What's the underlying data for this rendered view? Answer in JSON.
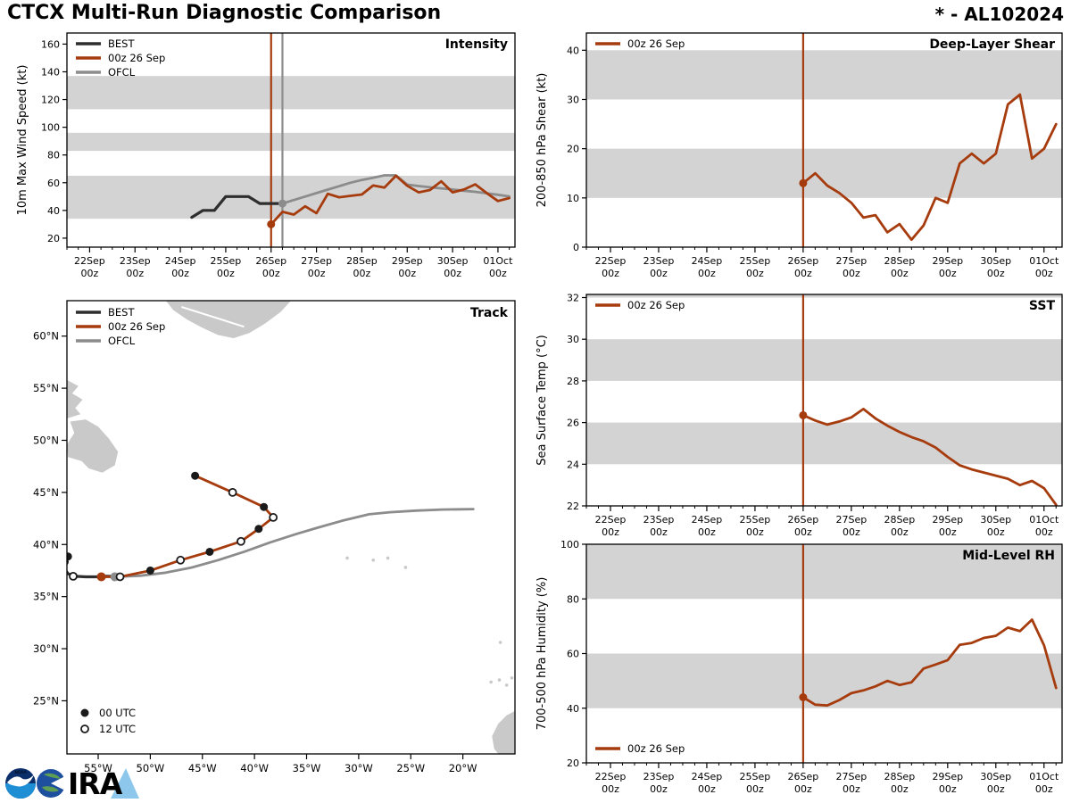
{
  "header": {
    "title": "CTCX Multi-Run Diagnostic Comparison",
    "storm_id": "* - AL102024"
  },
  "colors": {
    "best": "#2e2e2e",
    "model": "#a63c0e",
    "ofcl": "#8c8c8c",
    "band": "#d3d3d3",
    "land": "#c9c9c9",
    "axis": "#000000"
  },
  "logos": {
    "noaa_text": "NOAA",
    "cira_text": "IRA"
  },
  "time_axis": {
    "range_hours": [
      -12,
      225
    ],
    "major_tick_hours": [
      0,
      24,
      48,
      72,
      96,
      120,
      144,
      168,
      192,
      216
    ],
    "major_tick_labels": [
      [
        "22Sep",
        "00z"
      ],
      [
        "23Sep",
        "00z"
      ],
      [
        "24Sep",
        "00z"
      ],
      [
        "25Sep",
        "00z"
      ],
      [
        "26Sep",
        "00z"
      ],
      [
        "27Sep",
        "00z"
      ],
      [
        "28Sep",
        "00z"
      ],
      [
        "29Sep",
        "00z"
      ],
      [
        "30Sep",
        "00z"
      ],
      [
        "01Oct",
        "00z"
      ]
    ],
    "minor_step_hours": 6
  },
  "chart_data": [
    {
      "id": "intensity",
      "type": "line",
      "title": "Intensity",
      "ylabel": "10m Max Wind Speed (kt)",
      "ylim": [
        13.5,
        168
      ],
      "yticks": [
        20,
        40,
        60,
        80,
        100,
        120,
        140,
        160
      ],
      "bands": [
        [
          34,
          65
        ],
        [
          83,
          96
        ],
        [
          113,
          137
        ]
      ],
      "vlines": [
        {
          "t": 96,
          "color_key": "model"
        },
        {
          "t": 102,
          "color_key": "ofcl"
        }
      ],
      "legend": {
        "position": "top-left",
        "entries": [
          {
            "label": "BEST",
            "color_key": "best"
          },
          {
            "label": "00z 26 Sep",
            "color_key": "model"
          },
          {
            "label": "OFCL",
            "color_key": "ofcl"
          }
        ]
      },
      "series": [
        {
          "name": "BEST",
          "color_key": "best",
          "width": 3.2,
          "t_start": 54,
          "dt": 6,
          "values": [
            35,
            40,
            40,
            50,
            50,
            50,
            45,
            45,
            45
          ]
        },
        {
          "name": "OFCL",
          "color_key": "ofcl",
          "width": 2.8,
          "t_start": 102,
          "dt": 6,
          "values": [
            45,
            47.5,
            50,
            52.5,
            55,
            57.5,
            60,
            62,
            63.5,
            65.3,
            65.3,
            58.6,
            57.6,
            56.7,
            55.9,
            55.1,
            54.2,
            53.4,
            52.4,
            51.3,
            50.1
          ],
          "init_marker": {
            "t": 102,
            "v": 45
          }
        },
        {
          "name": "00z 26 Sep",
          "color_key": "model",
          "width": 2.8,
          "t_start": 96,
          "dt": 6,
          "values": [
            30,
            39,
            37,
            43,
            38,
            52,
            49.5,
            50.5,
            51.5,
            58,
            56.5,
            65,
            57.8,
            53,
            54.7,
            61,
            53,
            55.1,
            58.8,
            52.6,
            46.8,
            48.9
          ],
          "init_marker": {
            "t": 96,
            "v": 30
          }
        }
      ]
    },
    {
      "id": "shear",
      "type": "line",
      "title": "Deep-Layer Shear",
      "ylabel": "200-850 hPa Shear (kt)",
      "ylim": [
        0,
        43.5
      ],
      "yticks": [
        0,
        10,
        20,
        30,
        40
      ],
      "bands": [
        [
          10,
          20
        ],
        [
          30,
          40
        ]
      ],
      "vlines": [
        {
          "t": 96,
          "color_key": "model"
        }
      ],
      "legend": {
        "position": "top-left",
        "entries": [
          {
            "label": "00z 26 Sep",
            "color_key": "model"
          }
        ]
      },
      "series": [
        {
          "name": "00z 26 Sep",
          "color_key": "model",
          "width": 2.8,
          "t_start": 96,
          "dt": 6,
          "values": [
            13,
            15,
            12.5,
            11,
            9,
            6,
            6.5,
            3,
            4.7,
            1.5,
            4.4,
            10,
            9,
            17,
            19,
            17,
            19,
            29,
            31,
            18,
            20,
            25
          ],
          "init_marker": {
            "t": 96,
            "v": 13
          }
        }
      ]
    },
    {
      "id": "sst",
      "type": "line",
      "title": "SST",
      "ylabel": "Sea Surface Temp (°C)",
      "ylim": [
        22,
        32.15
      ],
      "yticks": [
        22,
        24,
        26,
        28,
        30,
        32
      ],
      "bands": [
        [
          24,
          26
        ],
        [
          28,
          30
        ],
        [
          32,
          32.15
        ]
      ],
      "vlines": [
        {
          "t": 96,
          "color_key": "model"
        }
      ],
      "legend": {
        "position": "top-left",
        "entries": [
          {
            "label": "00z 26 Sep",
            "color_key": "model"
          }
        ]
      },
      "series": [
        {
          "name": "00z 26 Sep",
          "color_key": "model",
          "width": 2.8,
          "t_start": 96,
          "dt": 6,
          "values": [
            26.35,
            26.1,
            25.9,
            26.05,
            26.25,
            26.65,
            26.2,
            25.85,
            25.55,
            25.3,
            25.1,
            24.8,
            24.35,
            23.95,
            23.75,
            23.6,
            23.45,
            23.3,
            23.0,
            23.2,
            22.85,
            22.05
          ],
          "init_marker": {
            "t": 96,
            "v": 26.35
          }
        }
      ]
    },
    {
      "id": "rh",
      "type": "line",
      "title": "Mid-Level RH",
      "ylabel": "700-500 hPa Humidity (%)",
      "ylim": [
        20,
        100
      ],
      "yticks": [
        20,
        40,
        60,
        80,
        100
      ],
      "bands": [
        [
          40,
          60
        ],
        [
          80,
          100
        ]
      ],
      "vlines": [
        {
          "t": 96,
          "color_key": "model"
        }
      ],
      "legend": {
        "position": "bottom-left",
        "entries": [
          {
            "label": "00z 26 Sep",
            "color_key": "model"
          }
        ]
      },
      "series": [
        {
          "name": "00z 26 Sep",
          "color_key": "model",
          "width": 2.8,
          "t_start": 96,
          "dt": 6,
          "values": [
            44,
            41.3,
            41,
            43,
            45.5,
            46.5,
            48,
            50,
            48.5,
            49.5,
            54.5,
            56,
            57.6,
            63.2,
            63.9,
            65.7,
            66.5,
            69.5,
            68.2,
            72.4,
            63,
            47.4
          ],
          "init_marker": {
            "t": 96,
            "v": 44
          }
        }
      ]
    },
    {
      "id": "track",
      "type": "map",
      "title": "Track",
      "lon_lim": [
        -58.0,
        -15.0
      ],
      "lat_lim": [
        19.9,
        63.4
      ],
      "lon_ticks": [
        -55,
        -50,
        -45,
        -40,
        -35,
        -30,
        -25,
        -20
      ],
      "lon_tick_labels": [
        "55°W",
        "50°W",
        "45°W",
        "40°W",
        "35°W",
        "30°W",
        "25°W",
        "20°W"
      ],
      "lat_ticks": [
        25,
        30,
        35,
        40,
        45,
        50,
        55,
        60
      ],
      "lat_tick_labels": [
        "25°N",
        "30°N",
        "35°N",
        "40°N",
        "45°N",
        "50°N",
        "55°N",
        "60°N"
      ],
      "legend": {
        "position": "top-left",
        "entries": [
          {
            "label": "BEST",
            "color_key": "best"
          },
          {
            "label": "00z 26 Sep",
            "color_key": "model"
          },
          {
            "label": "OFCL",
            "color_key": "ofcl"
          }
        ]
      },
      "marker_legend": [
        {
          "type": "filled",
          "label": "00 UTC"
        },
        {
          "type": "open",
          "label": "12 UTC"
        }
      ],
      "land": [
        {
          "name": "greenland",
          "points": [
            [
              -48.5,
              63.4
            ],
            [
              -36.5,
              63.4
            ],
            [
              -37.5,
              62.3
            ],
            [
              -39.0,
              61.2
            ],
            [
              -40.5,
              60.3
            ],
            [
              -42.0,
              59.8
            ],
            [
              -43.5,
              60.1
            ],
            [
              -45.0,
              60.8
            ],
            [
              -46.5,
              61.6
            ],
            [
              -47.8,
              62.5
            ]
          ]
        },
        {
          "name": "labrador",
          "points": [
            [
              -58.0,
              55.8
            ],
            [
              -56.9,
              55.2
            ],
            [
              -57.5,
              54.5
            ],
            [
              -56.5,
              53.9
            ],
            [
              -57.2,
              53.1
            ],
            [
              -56.7,
              52.5
            ],
            [
              -58.0,
              52.1
            ]
          ]
        },
        {
          "name": "newfoundland",
          "points": [
            [
              -57.7,
              51.8
            ],
            [
              -56.2,
              52.0
            ],
            [
              -55.0,
              51.3
            ],
            [
              -54.0,
              50.2
            ],
            [
              -53.1,
              48.9
            ],
            [
              -53.4,
              47.6
            ],
            [
              -54.6,
              46.9
            ],
            [
              -55.9,
              47.3
            ],
            [
              -56.6,
              48.0
            ],
            [
              -57.9,
              48.4
            ],
            [
              -58.0,
              49.6
            ],
            [
              -57.3,
              50.7
            ]
          ]
        },
        {
          "name": "africa-coast",
          "points": [
            [
              -15.05,
              24.0
            ],
            [
              -15.8,
              23.6
            ],
            [
              -16.6,
              22.8
            ],
            [
              -17.2,
              21.6
            ],
            [
              -17.0,
              20.4
            ],
            [
              -16.6,
              19.9
            ],
            [
              -15.05,
              19.9
            ]
          ]
        }
      ],
      "islands": [
        {
          "name": "azores",
          "spots": [
            [
              -31.1,
              38.7
            ],
            [
              -28.6,
              38.5
            ],
            [
              -27.2,
              38.7
            ],
            [
              -25.5,
              37.8
            ]
          ]
        },
        {
          "name": "madeira",
          "spots": [
            [
              -16.4,
              30.6
            ]
          ]
        },
        {
          "name": "canary",
          "spots": [
            [
              -17.3,
              26.8
            ],
            [
              -16.5,
              27.0
            ],
            [
              -15.8,
              26.5
            ],
            [
              -15.3,
              27.2
            ]
          ]
        }
      ],
      "tracks": [
        {
          "name": "OFCL",
          "color_key": "ofcl",
          "width": 2.8,
          "points": [
            [
              -53.4,
              36.9
            ],
            [
              -51.0,
              37.0
            ],
            [
              -48.5,
              37.3
            ],
            [
              -46.0,
              37.8
            ],
            [
              -43.5,
              38.5
            ],
            [
              -41.0,
              39.3
            ],
            [
              -38.5,
              40.2
            ],
            [
              -36.0,
              41.0
            ],
            [
              -34.0,
              41.6
            ],
            [
              -31.5,
              42.3
            ],
            [
              -29.0,
              42.9
            ],
            [
              -27.0,
              43.1
            ],
            [
              -24.5,
              43.25
            ],
            [
              -22.0,
              43.35
            ],
            [
              -19.0,
              43.4
            ]
          ],
          "init_marker": [
            -53.4,
            36.9
          ]
        },
        {
          "name": "BEST",
          "color_key": "best",
          "width": 3.2,
          "points": [
            [
              -57.9,
              38.85
            ],
            [
              -58.2,
              38.4
            ],
            [
              -58.3,
              37.8
            ],
            [
              -57.9,
              37.2
            ],
            [
              -57.2,
              36.95
            ],
            [
              -56.2,
              36.9
            ],
            [
              -55.2,
              36.9
            ],
            [
              -54.2,
              36.95
            ],
            [
              -53.3,
              36.93
            ],
            [
              -52.9,
              36.9
            ]
          ],
          "markers_00": [
            [
              -57.9,
              38.85
            ]
          ],
          "markers_12": [
            [
              -58.25,
              38.35
            ],
            [
              -57.4,
              36.95
            ]
          ]
        },
        {
          "name": "00z 26 Sep",
          "color_key": "model",
          "width": 2.8,
          "points": [
            [
              -54.7,
              36.9
            ],
            [
              -52.9,
              36.9
            ],
            [
              -50.0,
              37.5
            ],
            [
              -47.1,
              38.5
            ],
            [
              -44.3,
              39.3
            ],
            [
              -41.3,
              40.3
            ],
            [
              -39.6,
              41.5
            ],
            [
              -38.2,
              42.6
            ],
            [
              -39.1,
              43.6
            ],
            [
              -42.1,
              45.0
            ],
            [
              -45.7,
              46.6
            ]
          ],
          "init_marker": [
            -54.7,
            36.9
          ],
          "markers_00": [
            [
              -50.0,
              37.5
            ],
            [
              -44.3,
              39.3
            ],
            [
              -39.6,
              41.5
            ],
            [
              -39.1,
              43.6
            ],
            [
              -45.7,
              46.6
            ]
          ],
          "markers_12": [
            [
              -52.9,
              36.9
            ],
            [
              -47.1,
              38.5
            ],
            [
              -41.3,
              40.3
            ],
            [
              -38.2,
              42.6
            ],
            [
              -42.1,
              45.0
            ]
          ]
        }
      ]
    }
  ]
}
